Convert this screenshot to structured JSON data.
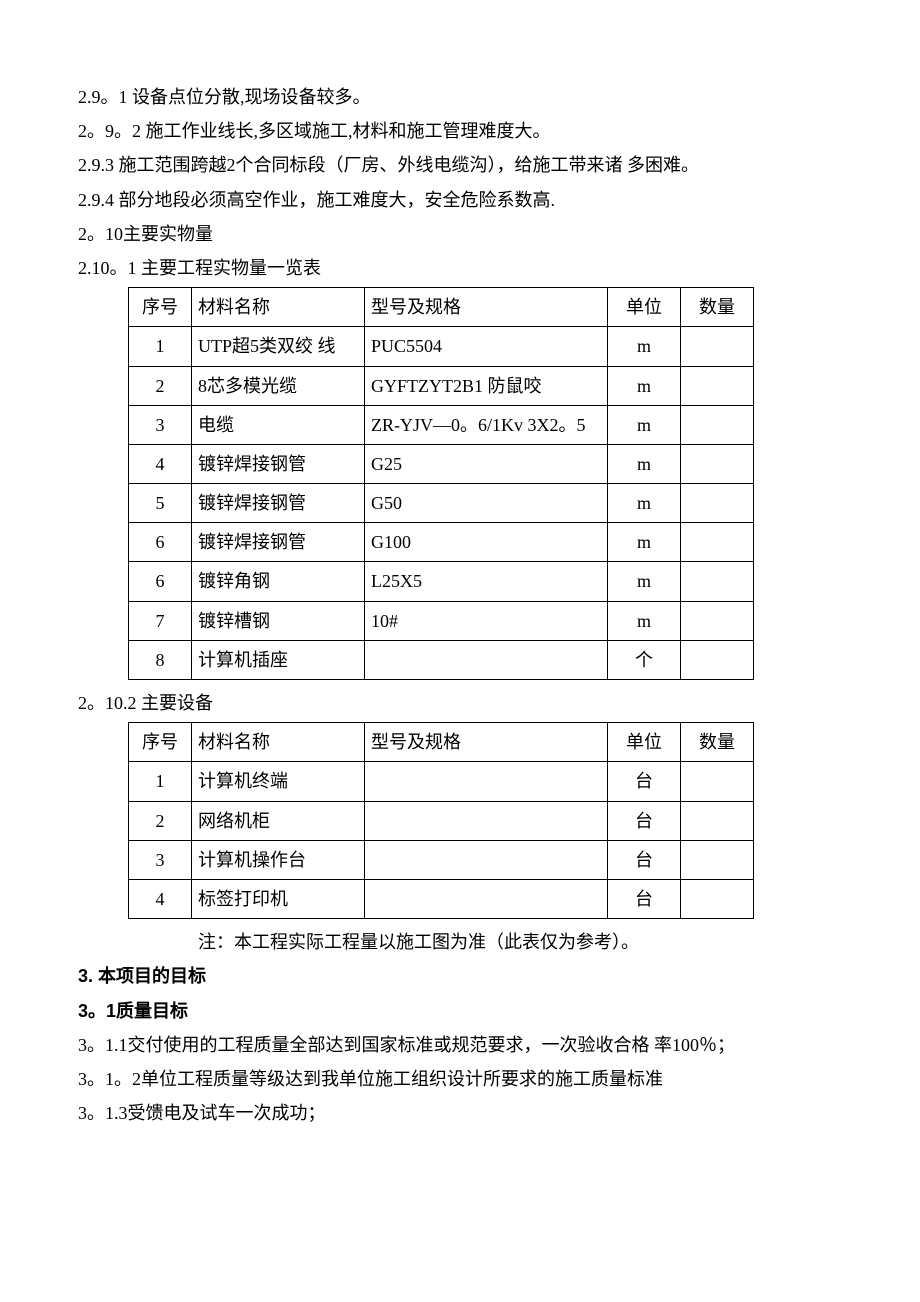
{
  "paragraphs": {
    "p1": "2.9。1 设备点位分散,现场设备较多。",
    "p2": "2。9。2 施工作业线长,多区域施工,材料和施工管理难度大。",
    "p3": "2.9.3  施工范围跨越2个合同标段（厂房、外线电缆沟），给施工带来诸 多困难。",
    "p4": "2.9.4  部分地段必须高空作业，施工难度大，安全危险系数高.",
    "p5": "2。10主要实物量",
    "p6": "2.10。1 主要工程实物量一览表",
    "p7": "2。10.2 主要设备",
    "note": "注：本工程实际工程量以施工图为准（此表仅为参考）。",
    "h3": "3. 本项目的目标",
    "h3_1": "3。1质量目标",
    "p8": "3。1.1交付使用的工程质量全部达到国家标准或规范要求，一次验收合格 率100％；",
    "p9": "3。1。2单位工程质量等级达到我单位施工组织设计所要求的施工质量标准",
    "p10": "3。1.3受馈电及试车一次成功；"
  },
  "table1": {
    "headers": {
      "seq": "序号",
      "name": "材料名称",
      "spec": "型号及规格",
      "unit": "单位",
      "qty": "数量"
    },
    "rows": [
      {
        "seq": "1",
        "name": "UTP超5类双绞 线",
        "spec": "PUC5504",
        "unit": "m",
        "qty": ""
      },
      {
        "seq": "2",
        "name": "8芯多模光缆",
        "spec": "GYFTZYT2B1 防鼠咬",
        "unit": "m",
        "qty": ""
      },
      {
        "seq": "3",
        "name": "电缆",
        "spec": "ZR-YJV—0。6/1Kv 3X2。5",
        "unit": "m",
        "qty": ""
      },
      {
        "seq": "4",
        "name": "镀锌焊接钢管",
        "spec": "G25",
        "unit": "m",
        "qty": ""
      },
      {
        "seq": "5",
        "name": "镀锌焊接钢管",
        "spec": "G50",
        "unit": "m",
        "qty": ""
      },
      {
        "seq": "6",
        "name": "镀锌焊接钢管",
        "spec": "G100",
        "unit": "m",
        "qty": ""
      },
      {
        "seq": "6",
        "name": "镀锌角钢",
        "spec": "L25X5",
        "unit": "m",
        "qty": ""
      },
      {
        "seq": "7",
        "name": "镀锌槽钢",
        "spec": "10#",
        "unit": "m",
        "qty": ""
      },
      {
        "seq": "8",
        "name": "计算机插座",
        "spec": "",
        "unit": "个",
        "qty": ""
      }
    ]
  },
  "table2": {
    "headers": {
      "seq": "序号",
      "name": "材料名称",
      "spec": "型号及规格",
      "unit": "单位",
      "qty": "数量"
    },
    "rows": [
      {
        "seq": "1",
        "name": "计算机终端",
        "spec": "",
        "unit": "台",
        "qty": ""
      },
      {
        "seq": "2",
        "name": "网络机柜",
        "spec": "",
        "unit": "台",
        "qty": ""
      },
      {
        "seq": "3",
        "name": "计算机操作台",
        "spec": "",
        "unit": "台",
        "qty": ""
      },
      {
        "seq": "4",
        "name": "标签打印机",
        "spec": "",
        "unit": "台",
        "qty": ""
      }
    ]
  }
}
